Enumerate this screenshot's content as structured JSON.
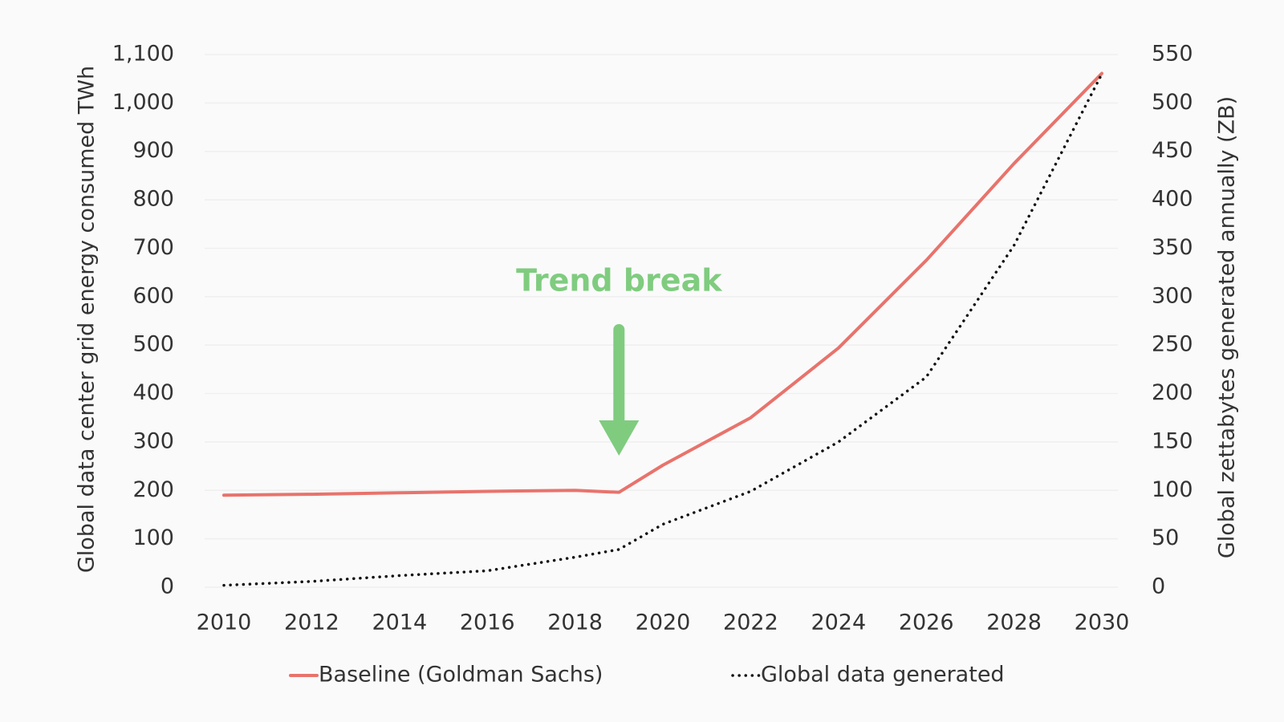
{
  "chart_data": {
    "type": "line",
    "x": [
      2010,
      2012,
      2014,
      2016,
      2018,
      2019,
      2020,
      2022,
      2024,
      2026,
      2028,
      2030
    ],
    "series": [
      {
        "name": "Baseline (Goldman Sachs)",
        "color": "#e8736c",
        "style": "solid",
        "values": [
          190,
          192,
          195,
          198,
          200,
          196,
          252,
          350,
          494,
          675,
          875,
          1061
        ]
      },
      {
        "name": "Global data generated",
        "color": "#111111",
        "style": "dotted",
        "axis": "y2",
        "values": [
          2,
          6,
          12,
          17,
          31,
          39,
          65,
          99,
          150,
          217,
          353,
          530
        ]
      }
    ],
    "ylabel": "Global data center grid energy consumed  TWh",
    "y2label": "Global zettabytes generated annually (ZB)",
    "xlim": [
      2010,
      2030
    ],
    "xticks": [
      2010,
      2012,
      2014,
      2016,
      2018,
      2020,
      2022,
      2024,
      2026,
      2028,
      2030
    ],
    "ylim": [
      0,
      1100
    ],
    "yticks": [
      0,
      100,
      200,
      300,
      400,
      500,
      600,
      700,
      800,
      900,
      {
        "value": 1000,
        "label": "1,000"
      },
      {
        "value": 1100,
        "label": "1,100"
      }
    ],
    "y2lim": [
      0,
      550
    ],
    "y2ticks": [
      0,
      50,
      100,
      150,
      200,
      250,
      300,
      350,
      400,
      450,
      500,
      550
    ],
    "grid": true,
    "legend": "bottom",
    "annotations": [
      {
        "text": "Trend break",
        "x": 2019,
        "color": "#7fcc7f"
      }
    ]
  }
}
